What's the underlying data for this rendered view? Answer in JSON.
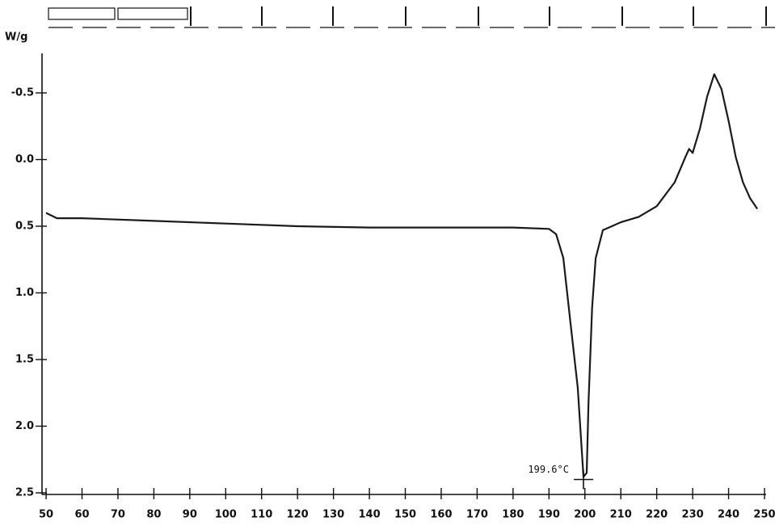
{
  "chart_data": {
    "type": "line",
    "y_label": "W/g",
    "y_inverted": true,
    "xlim": [
      49,
      250
    ],
    "ylim": [
      -0.78,
      2.5
    ],
    "xticks": [
      50,
      60,
      70,
      80,
      90,
      100,
      110,
      120,
      130,
      140,
      150,
      160,
      170,
      180,
      190,
      200,
      210,
      220,
      230,
      240,
      250
    ],
    "yticks": [
      -0.5,
      {
        "value": 0,
        "label": "0.0"
      },
      0.5,
      {
        "value": 1,
        "label": "1.0"
      },
      1.5,
      {
        "value": 2,
        "label": "2.0"
      },
      2.5
    ],
    "series": [
      {
        "color": "#1a1a1a",
        "x": [
          50,
          53,
          60,
          80,
          100,
          120,
          140,
          160,
          180,
          190,
          192,
          194,
          196,
          198,
          199.6,
          200.5,
          201,
          202,
          203,
          205,
          210,
          215,
          220,
          225,
          228,
          229,
          230,
          232,
          234,
          236,
          238,
          240,
          242,
          244,
          246,
          248
        ],
        "values": [
          0.4,
          0.44,
          0.44,
          0.46,
          0.48,
          0.5,
          0.51,
          0.51,
          0.51,
          0.52,
          0.56,
          0.74,
          1.23,
          1.71,
          2.38,
          2.35,
          1.83,
          1.11,
          0.74,
          0.53,
          0.47,
          0.43,
          0.35,
          0.17,
          -0.02,
          -0.08,
          -0.05,
          -0.23,
          -0.47,
          -0.64,
          -0.53,
          -0.29,
          -0.02,
          0.17,
          0.29,
          0.37
        ]
      }
    ],
    "annotation": {
      "text": "199.6°C",
      "x": 199.6,
      "y": 2.4
    }
  }
}
